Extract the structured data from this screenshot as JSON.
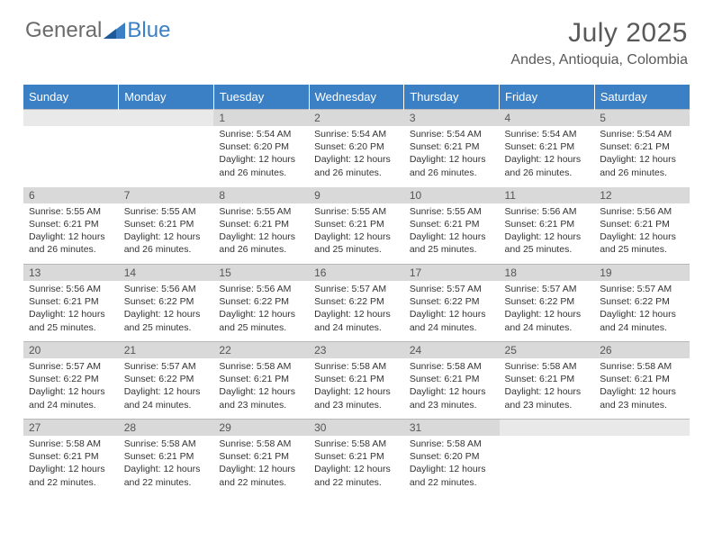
{
  "logo": {
    "general": "General",
    "blue": "Blue"
  },
  "title": "July 2025",
  "location": "Andes, Antioquia, Colombia",
  "colors": {
    "headerBg": "#3b7fc4",
    "headerText": "#ffffff",
    "dayNumBg": "#d9d9d9",
    "titleColor": "#595959",
    "textColor": "#333333",
    "borderColor": "#b8b8b8"
  },
  "dayHeaders": [
    "Sunday",
    "Monday",
    "Tuesday",
    "Wednesday",
    "Thursday",
    "Friday",
    "Saturday"
  ],
  "startBlankCells": 2,
  "days": [
    {
      "n": 1,
      "sunrise": "5:54 AM",
      "sunset": "6:20 PM",
      "daylight": "12 hours and 26 minutes."
    },
    {
      "n": 2,
      "sunrise": "5:54 AM",
      "sunset": "6:20 PM",
      "daylight": "12 hours and 26 minutes."
    },
    {
      "n": 3,
      "sunrise": "5:54 AM",
      "sunset": "6:21 PM",
      "daylight": "12 hours and 26 minutes."
    },
    {
      "n": 4,
      "sunrise": "5:54 AM",
      "sunset": "6:21 PM",
      "daylight": "12 hours and 26 minutes."
    },
    {
      "n": 5,
      "sunrise": "5:54 AM",
      "sunset": "6:21 PM",
      "daylight": "12 hours and 26 minutes."
    },
    {
      "n": 6,
      "sunrise": "5:55 AM",
      "sunset": "6:21 PM",
      "daylight": "12 hours and 26 minutes."
    },
    {
      "n": 7,
      "sunrise": "5:55 AM",
      "sunset": "6:21 PM",
      "daylight": "12 hours and 26 minutes."
    },
    {
      "n": 8,
      "sunrise": "5:55 AM",
      "sunset": "6:21 PM",
      "daylight": "12 hours and 26 minutes."
    },
    {
      "n": 9,
      "sunrise": "5:55 AM",
      "sunset": "6:21 PM",
      "daylight": "12 hours and 25 minutes."
    },
    {
      "n": 10,
      "sunrise": "5:55 AM",
      "sunset": "6:21 PM",
      "daylight": "12 hours and 25 minutes."
    },
    {
      "n": 11,
      "sunrise": "5:56 AM",
      "sunset": "6:21 PM",
      "daylight": "12 hours and 25 minutes."
    },
    {
      "n": 12,
      "sunrise": "5:56 AM",
      "sunset": "6:21 PM",
      "daylight": "12 hours and 25 minutes."
    },
    {
      "n": 13,
      "sunrise": "5:56 AM",
      "sunset": "6:21 PM",
      "daylight": "12 hours and 25 minutes."
    },
    {
      "n": 14,
      "sunrise": "5:56 AM",
      "sunset": "6:22 PM",
      "daylight": "12 hours and 25 minutes."
    },
    {
      "n": 15,
      "sunrise": "5:56 AM",
      "sunset": "6:22 PM",
      "daylight": "12 hours and 25 minutes."
    },
    {
      "n": 16,
      "sunrise": "5:57 AM",
      "sunset": "6:22 PM",
      "daylight": "12 hours and 24 minutes."
    },
    {
      "n": 17,
      "sunrise": "5:57 AM",
      "sunset": "6:22 PM",
      "daylight": "12 hours and 24 minutes."
    },
    {
      "n": 18,
      "sunrise": "5:57 AM",
      "sunset": "6:22 PM",
      "daylight": "12 hours and 24 minutes."
    },
    {
      "n": 19,
      "sunrise": "5:57 AM",
      "sunset": "6:22 PM",
      "daylight": "12 hours and 24 minutes."
    },
    {
      "n": 20,
      "sunrise": "5:57 AM",
      "sunset": "6:22 PM",
      "daylight": "12 hours and 24 minutes."
    },
    {
      "n": 21,
      "sunrise": "5:57 AM",
      "sunset": "6:22 PM",
      "daylight": "12 hours and 24 minutes."
    },
    {
      "n": 22,
      "sunrise": "5:58 AM",
      "sunset": "6:21 PM",
      "daylight": "12 hours and 23 minutes."
    },
    {
      "n": 23,
      "sunrise": "5:58 AM",
      "sunset": "6:21 PM",
      "daylight": "12 hours and 23 minutes."
    },
    {
      "n": 24,
      "sunrise": "5:58 AM",
      "sunset": "6:21 PM",
      "daylight": "12 hours and 23 minutes."
    },
    {
      "n": 25,
      "sunrise": "5:58 AM",
      "sunset": "6:21 PM",
      "daylight": "12 hours and 23 minutes."
    },
    {
      "n": 26,
      "sunrise": "5:58 AM",
      "sunset": "6:21 PM",
      "daylight": "12 hours and 23 minutes."
    },
    {
      "n": 27,
      "sunrise": "5:58 AM",
      "sunset": "6:21 PM",
      "daylight": "12 hours and 22 minutes."
    },
    {
      "n": 28,
      "sunrise": "5:58 AM",
      "sunset": "6:21 PM",
      "daylight": "12 hours and 22 minutes."
    },
    {
      "n": 29,
      "sunrise": "5:58 AM",
      "sunset": "6:21 PM",
      "daylight": "12 hours and 22 minutes."
    },
    {
      "n": 30,
      "sunrise": "5:58 AM",
      "sunset": "6:21 PM",
      "daylight": "12 hours and 22 minutes."
    },
    {
      "n": 31,
      "sunrise": "5:58 AM",
      "sunset": "6:20 PM",
      "daylight": "12 hours and 22 minutes."
    }
  ],
  "labels": {
    "sunrise": "Sunrise:",
    "sunset": "Sunset:",
    "daylight": "Daylight:"
  }
}
